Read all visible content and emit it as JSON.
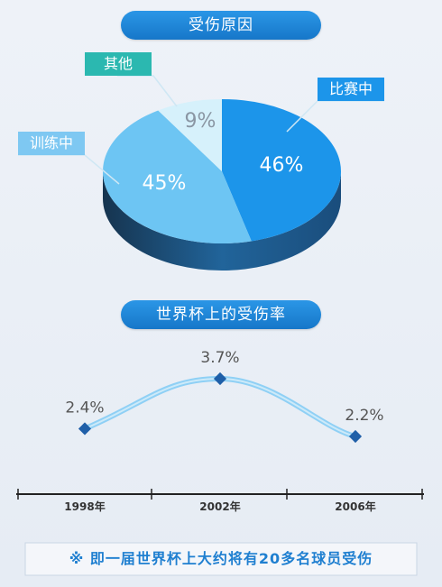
{
  "chart_data": [
    {
      "type": "pie",
      "title": "受伤原因",
      "slices": [
        {
          "label": "比赛中",
          "value": 46,
          "display": "46%",
          "color": "#1c95ea"
        },
        {
          "label": "训练中",
          "value": 45,
          "display": "45%",
          "color": "#6dc5f3"
        },
        {
          "label": "其他",
          "value": 9,
          "display": "9%",
          "color": "#d6f1fb"
        }
      ]
    },
    {
      "type": "line",
      "title": "世界杯上的受伤率",
      "x": [
        "1998年",
        "2002年",
        "2006年"
      ],
      "series": [
        {
          "values": [
            2.4,
            3.7,
            2.2
          ],
          "labels": [
            "2.4%",
            "3.7%",
            "2.2%"
          ]
        }
      ]
    }
  ],
  "footer": "※ 即一届世界杯上大约将有20多名球员受伤"
}
